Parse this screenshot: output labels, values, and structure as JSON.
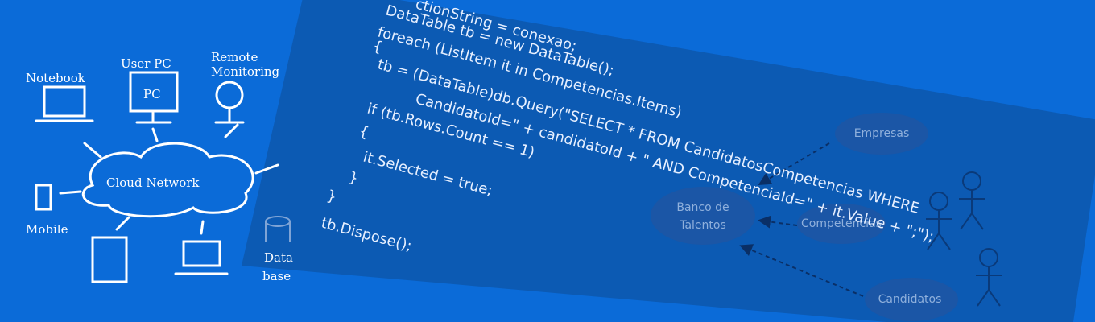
{
  "sketch": {
    "labels": [
      "Notebook",
      "User PC",
      "PC",
      "Remote",
      "Monitoring",
      "Cloud Network",
      "Mobile",
      "Data",
      "base"
    ]
  },
  "code": {
    "lines": [
      "ctionString = conexao;",
      "DataTable tb = new DataTable();",
      "foreach (ListItem it in Competencias.Items)",
      "{",
      "tb = (DataTable)db.Query(\"SELECT * FROM CandidatosCompetencias WHERE",
      "CandidatoId=\" + candidatoId + \" AND CompetenciaId=\" + it.Value + \";\");",
      "if (tb.Rows.Count == 1)",
      "{",
      "it.Selected = true;",
      "}",
      "}",
      "tb.Dispose();"
    ]
  },
  "diagram": {
    "nodes": [
      "Empresas",
      "Banco de",
      "Talentos",
      "Competencias",
      "Candidatos"
    ]
  }
}
